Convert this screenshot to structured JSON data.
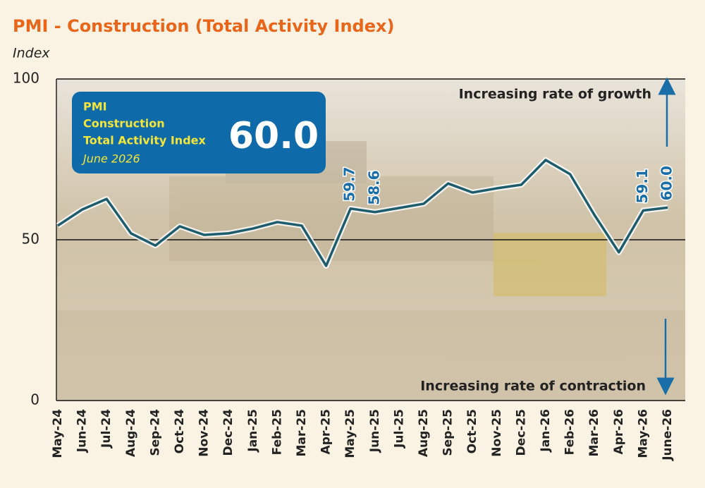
{
  "chart_data": {
    "type": "line",
    "title": "PMI - Construction (Total Activity Index)",
    "y_label": "Index",
    "categories": [
      "May-24",
      "Jun-24",
      "Jul-24",
      "Aug-24",
      "Sep-24",
      "Oct-24",
      "Nov-24",
      "Dec-24",
      "Jan-25",
      "Feb-25",
      "Mar-25",
      "Apr-25",
      "May-25",
      "Jun-25",
      "Jul-25",
      "Aug-25",
      "Sep-25",
      "Oct-25",
      "Nov-25",
      "Dec-25",
      "Jan-26",
      "Feb-26",
      "Mar-26",
      "Apr-26",
      "May-26",
      "June-26"
    ],
    "series": [
      {
        "name": "PMI Construction Total Activity Index",
        "color": "#1d5c6c",
        "values": [
          54.4,
          59.4,
          62.7,
          52.0,
          48.2,
          54.2,
          51.5,
          52.0,
          53.5,
          55.5,
          54.4,
          41.9,
          59.7,
          58.6,
          59.9,
          61.2,
          67.5,
          64.7,
          66.0,
          67.1,
          74.8,
          70.4,
          57.7,
          46.1,
          59.1,
          60.0
        ],
        "value_labels": [
          null,
          null,
          null,
          null,
          null,
          null,
          null,
          null,
          null,
          null,
          null,
          null,
          "59.7",
          "58.6",
          null,
          null,
          null,
          null,
          null,
          null,
          null,
          null,
          null,
          null,
          "59.1",
          "60.0"
        ]
      }
    ],
    "ylim": [
      0,
      100
    ],
    "yticks": [
      0,
      50,
      100
    ],
    "grid": true,
    "info_box": {
      "title": [
        "PMI",
        "Construction",
        "Total Activity Index"
      ],
      "date": "June 2026",
      "headline": "60.0"
    },
    "annotations": {
      "top": "Increasing rate of growth",
      "bottom": "Increasing rate of contraction"
    }
  }
}
